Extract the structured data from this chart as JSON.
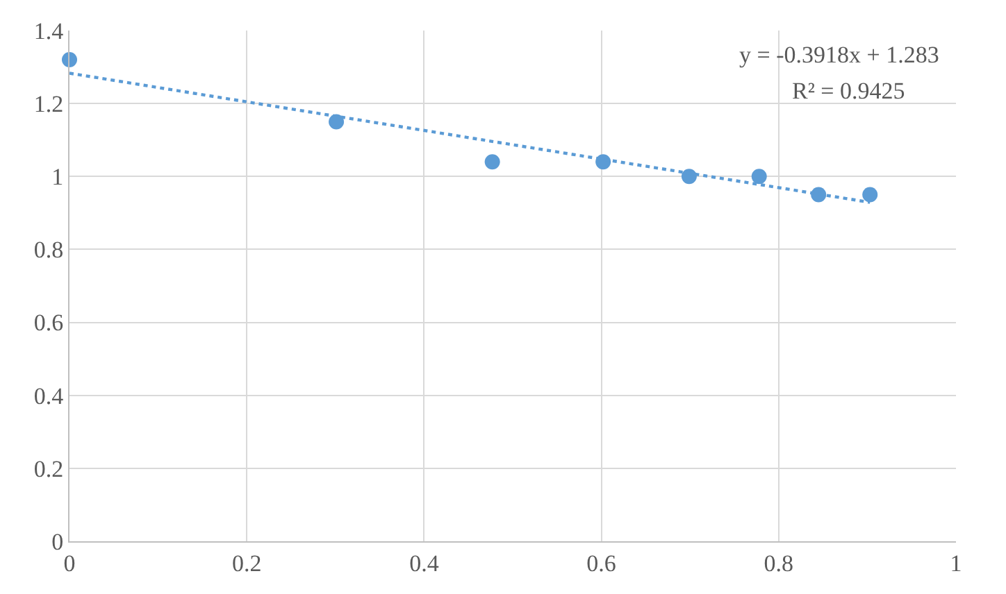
{
  "chart_data": {
    "type": "scatter",
    "series": [
      {
        "color": "#5b9bd5",
        "x": [
          0,
          0.301,
          0.477,
          0.602,
          0.699,
          0.778,
          0.845,
          0.903
        ],
        "values": [
          1.32,
          1.15,
          1.04,
          1.04,
          1.0,
          1.0,
          0.95,
          0.95
        ]
      },
      {
        "type": "line",
        "color": "#5b9bd5",
        "line_style": "dotted",
        "marker": "none",
        "x": [
          0,
          0.903
        ],
        "values": [
          1.283,
          0.929
        ]
      }
    ],
    "annotations": [
      {
        "text": "y = -0.3918x + 1.283"
      },
      {
        "text": "R² = 0.9425"
      }
    ],
    "xlim": [
      0,
      1
    ],
    "xticks": [
      0,
      0.2,
      0.4,
      0.6,
      0.8,
      1
    ],
    "ylim": [
      0,
      1.4
    ],
    "yticks": [
      0,
      0.2,
      0.4,
      0.6,
      0.8,
      1,
      1.2,
      1.4
    ],
    "grid": true,
    "marker": "circle"
  }
}
